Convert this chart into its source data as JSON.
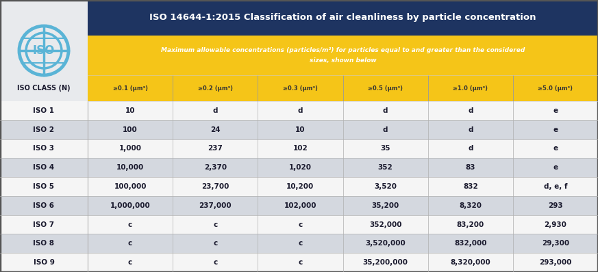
{
  "title": "ISO 14644-1:2015 Classification of air cleanliness by particle concentration",
  "subtitle_line1": "Maximum allowable concentrations (particles/m³) for particles equal to and greater than the considered",
  "subtitle_line2": "sizes, shown below",
  "col_label": "ISO CLASS (N)",
  "col_headers": [
    "≥0.1 (μm³)",
    "≥0.2 (μm³)",
    "≥0.3 (μm³)",
    "≥0.5 (μm³)",
    "≥1.0 (μm³)",
    "≥5.0 (μm³)"
  ],
  "row_labels": [
    "ISO 1",
    "ISO 2",
    "ISO 3",
    "ISO 4",
    "ISO 5",
    "ISO 6",
    "ISO 7",
    "ISO 8",
    "ISO 9"
  ],
  "table_data": [
    [
      "10",
      "d",
      "d",
      "d",
      "d",
      "e"
    ],
    [
      "100",
      "24",
      "10",
      "d",
      "d",
      "e"
    ],
    [
      "1,000",
      "237",
      "102",
      "35",
      "d",
      "e"
    ],
    [
      "10,000",
      "2,370",
      "1,020",
      "352",
      "83",
      "e"
    ],
    [
      "100,000",
      "23,700",
      "10,200",
      "3,520",
      "832",
      "d, e, f"
    ],
    [
      "1,000,000",
      "237,000",
      "102,000",
      "35,200",
      "8,320",
      "293"
    ],
    [
      "c",
      "c",
      "c",
      "352,000",
      "83,200",
      "2,930"
    ],
    [
      "c",
      "c",
      "c",
      "3,520,000",
      "832,000",
      "29,300"
    ],
    [
      "c",
      "c",
      "c",
      "35,200,000",
      "8,320,000",
      "293,000"
    ]
  ],
  "header_bg": "#1e3461",
  "header_fg": "#ffffff",
  "subtitle_bg": "#f5c518",
  "subtitle_fg": "#ffffff",
  "col_header_bg": "#f5c518",
  "col_header_fg": "#333333",
  "left_panel_bg": "#e8eaed",
  "row_even_bg": "#f5f5f5",
  "row_odd_bg": "#d4d8df",
  "row_fg": "#1a1a2e",
  "border_color": "#b0b0b0",
  "logo_color": "#5ab4d6",
  "logo_bg": "#e8eaed",
  "outer_bg": "#b0b5bb"
}
